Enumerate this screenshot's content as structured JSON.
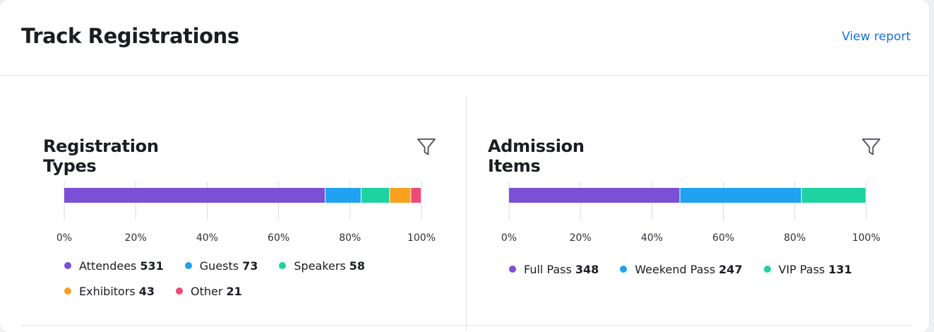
{
  "header": {
    "title": "Track Registrations",
    "view_report": "View report"
  },
  "chart_data": [
    {
      "type": "bar",
      "orientation": "horizontal-stacked-percent",
      "title": "Registration Types",
      "xlim": [
        0,
        100
      ],
      "x_ticks": [
        "0%",
        "20%",
        "40%",
        "60%",
        "80%",
        "100%"
      ],
      "grid": true,
      "legend": "bottom",
      "series": [
        {
          "name": "Attendees",
          "value": 531,
          "color": "#7b4fd6"
        },
        {
          "name": "Guests",
          "value": 73,
          "color": "#1fa2f0"
        },
        {
          "name": "Speakers",
          "value": 58,
          "color": "#1ed3a1"
        },
        {
          "name": "Exhibitors",
          "value": 43,
          "color": "#f9a11e"
        },
        {
          "name": "Other",
          "value": 21,
          "color": "#ec4b77"
        }
      ]
    },
    {
      "type": "bar",
      "orientation": "horizontal-stacked-percent",
      "title": "Admission Items",
      "xlim": [
        0,
        100
      ],
      "x_ticks": [
        "0%",
        "20%",
        "40%",
        "60%",
        "80%",
        "100%"
      ],
      "grid": true,
      "legend": "bottom",
      "series": [
        {
          "name": "Full Pass",
          "value": 348,
          "color": "#7b4fd6"
        },
        {
          "name": "Weekend Pass",
          "value": 247,
          "color": "#1fa2f0"
        },
        {
          "name": "VIP Pass",
          "value": 131,
          "color": "#1ed3a1"
        }
      ]
    }
  ],
  "icons": {
    "filter": "filter-icon"
  }
}
